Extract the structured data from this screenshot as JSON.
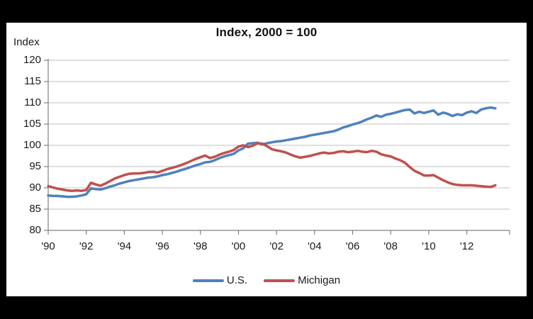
{
  "page": {
    "background_color": "#000000",
    "chart_background_color": "#ffffff"
  },
  "chart_data": {
    "type": "line",
    "title": "Index, 2000 = 100",
    "corner_label": "Index",
    "xlabel": "",
    "ylabel": "Index",
    "xlim": [
      1990,
      2014.25
    ],
    "ylim": [
      80,
      120
    ],
    "grid": "horizontal",
    "grid_color": "#bfbfbf",
    "axis_color": "#808080",
    "legend_position": "bottom-center",
    "yticks": [
      80,
      85,
      90,
      95,
      100,
      105,
      110,
      115,
      120
    ],
    "xticks": [
      {
        "year": 1990,
        "label": "'90"
      },
      {
        "year": 1992,
        "label": "'92"
      },
      {
        "year": 1994,
        "label": "'94"
      },
      {
        "year": 1996,
        "label": "'96"
      },
      {
        "year": 1998,
        "label": "'98"
      },
      {
        "year": 2000,
        "label": "'00"
      },
      {
        "year": 2002,
        "label": "'02"
      },
      {
        "year": 2004,
        "label": "'04"
      },
      {
        "year": 2006,
        "label": "'06"
      },
      {
        "year": 2008,
        "label": "'08"
      },
      {
        "year": 2010,
        "label": "'10"
      },
      {
        "year": 2012,
        "label": "'12"
      }
    ],
    "x_start": 1990.0,
    "x_step": 0.25,
    "series": [
      {
        "name": "U.S.",
        "color": "#4F81BD",
        "values": [
          88.2,
          88.1,
          88.1,
          88.0,
          87.9,
          87.9,
          88.0,
          88.2,
          88.5,
          89.9,
          89.7,
          89.6,
          89.9,
          90.3,
          90.6,
          91.0,
          91.3,
          91.6,
          91.8,
          92.0,
          92.2,
          92.4,
          92.5,
          92.7,
          93.0,
          93.2,
          93.5,
          93.8,
          94.2,
          94.5,
          94.9,
          95.3,
          95.6,
          96.0,
          96.1,
          96.5,
          97.0,
          97.4,
          97.7,
          98.0,
          98.8,
          99.3,
          100.4,
          100.5,
          100.6,
          100.2,
          100.5,
          100.7,
          100.9,
          101.0,
          101.2,
          101.4,
          101.6,
          101.8,
          102.0,
          102.3,
          102.5,
          102.7,
          102.9,
          103.1,
          103.3,
          103.7,
          104.2,
          104.5,
          104.9,
          105.2,
          105.6,
          106.1,
          106.5,
          107.0,
          106.7,
          107.2,
          107.4,
          107.7,
          108.0,
          108.3,
          108.4,
          107.5,
          107.9,
          107.6,
          107.9,
          108.2,
          107.2,
          107.7,
          107.4,
          106.9,
          107.3,
          107.1,
          107.7,
          108.0,
          107.6,
          108.4,
          108.7,
          108.9,
          108.7
        ]
      },
      {
        "name": "Michigan",
        "color": "#C0504D",
        "values": [
          90.4,
          90.1,
          89.8,
          89.6,
          89.4,
          89.3,
          89.4,
          89.3,
          89.5,
          91.2,
          90.8,
          90.5,
          91.0,
          91.6,
          92.2,
          92.6,
          93.0,
          93.3,
          93.4,
          93.4,
          93.5,
          93.7,
          93.8,
          93.6,
          94.0,
          94.4,
          94.7,
          95.0,
          95.4,
          95.8,
          96.3,
          96.8,
          97.2,
          97.6,
          97.0,
          97.3,
          97.8,
          98.2,
          98.5,
          98.9,
          99.7,
          100.0,
          99.6,
          99.9,
          100.5,
          100.4,
          99.8,
          99.1,
          98.8,
          98.6,
          98.3,
          97.8,
          97.4,
          97.1,
          97.3,
          97.5,
          97.8,
          98.1,
          98.3,
          98.1,
          98.2,
          98.5,
          98.6,
          98.4,
          98.5,
          98.7,
          98.5,
          98.4,
          98.7,
          98.5,
          97.9,
          97.6,
          97.4,
          96.9,
          96.5,
          95.9,
          94.9,
          94.0,
          93.5,
          92.9,
          92.9,
          93.0,
          92.4,
          91.8,
          91.3,
          90.9,
          90.7,
          90.6,
          90.6,
          90.6,
          90.5,
          90.4,
          90.3,
          90.2,
          90.6
        ]
      }
    ]
  },
  "legend": {
    "items": [
      {
        "label": "U.S."
      },
      {
        "label": "Michigan"
      }
    ]
  }
}
